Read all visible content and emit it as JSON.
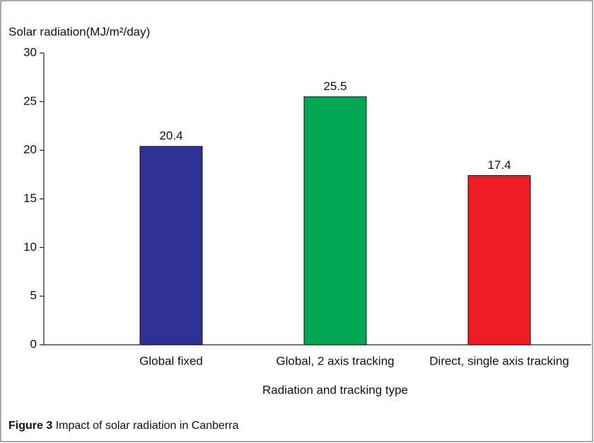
{
  "chart_data": {
    "type": "bar",
    "y_label": "Solar radiation(MJ/m²/day)",
    "x_label": "Radiation and tracking type",
    "categories": [
      "Global fixed",
      "Global, 2 axis tracking",
      "Direct, single axis tracking"
    ],
    "values": [
      20.4,
      25.5,
      17.4
    ],
    "colors": [
      "#2e3192",
      "#00a651",
      "#ed1c24"
    ],
    "ylim": [
      0,
      30
    ],
    "yticks": [
      0,
      5,
      10,
      15,
      20,
      25,
      30
    ],
    "grid": false
  },
  "caption": {
    "label": "Figure 3",
    "text": "Impact of solar radiation in Canberra"
  }
}
